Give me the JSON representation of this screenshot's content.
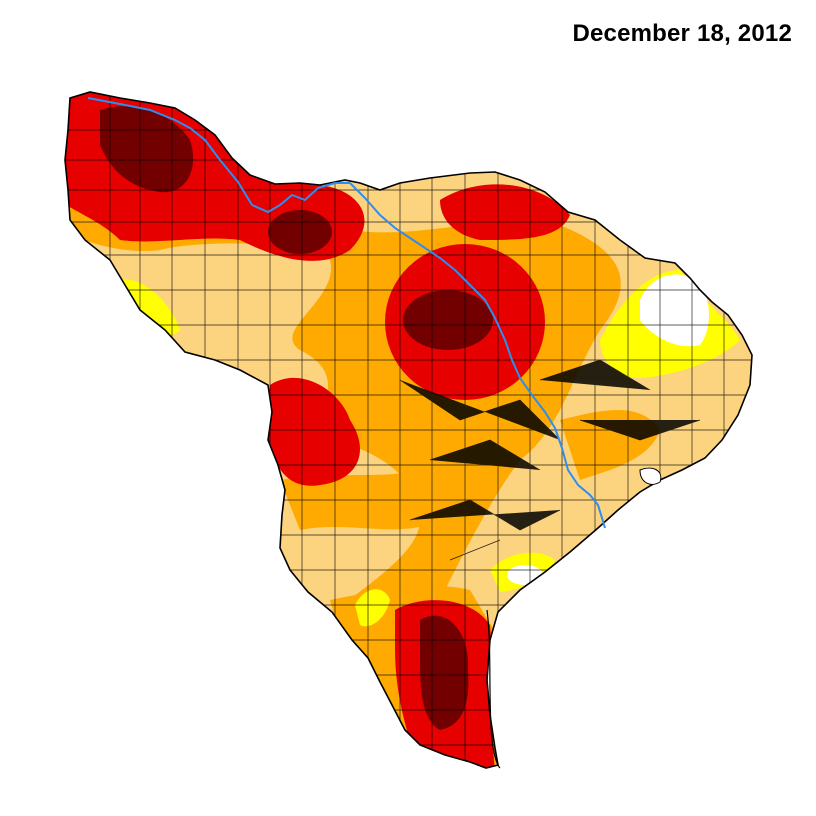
{
  "title": "December 18, 2012",
  "colors": {
    "none": "#ffffff",
    "abnormally_dry": "#ffff00",
    "moderate": "#fcd37f",
    "severe": "#ffaa00",
    "extreme": "#e60000",
    "exceptional": "#730000",
    "river": "#2e8ef0",
    "boundary": "#000000"
  }
}
